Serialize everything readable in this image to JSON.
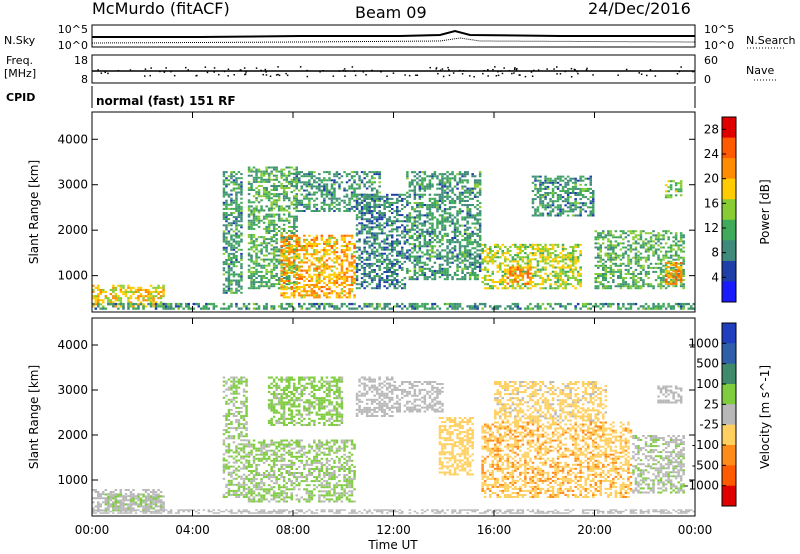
{
  "header": {
    "station": "McMurdo (fitACF)",
    "beam": "Beam 09",
    "date": "24/Dec/2016"
  },
  "panels": {
    "nsky": {
      "left_label": "N.Sky",
      "right_label": "N.Search",
      "left_ticks": [
        "10^5",
        "10^0"
      ],
      "right_ticks": [
        "10^5",
        "10^0"
      ]
    },
    "freq": {
      "left_label_line1": "Freq.",
      "left_label_line2": "[MHz]",
      "right_label": "Nave",
      "left_ticks": [
        "18",
        "8"
      ],
      "right_ticks": [
        "60",
        "0"
      ]
    },
    "cpid": {
      "label": "CPID",
      "text": "normal (fast) 151 RF"
    }
  },
  "colors": {
    "power_scale": [
      "#1a1aff",
      "#1f3fa8",
      "#3f8a7a",
      "#3faa5a",
      "#88cc33",
      "#ffcc00",
      "#ff8c00",
      "#ff5a00",
      "#e00000"
    ],
    "velocity_scale": [
      "#1f3fbf",
      "#2f5fa8",
      "#3f8a6a",
      "#7fcc3f",
      "#b8b8b8",
      "#ffd060",
      "#ff8c1a",
      "#ff5a00",
      "#e00000"
    ]
  },
  "chart_data": [
    {
      "type": "heatmap",
      "name": "Power",
      "xlabel": "",
      "ylabel": "Slant Range [km]",
      "xlim": [
        "00:00",
        "24:00"
      ],
      "ylim": [
        200,
        4600
      ],
      "x_ticks": [
        "00:00",
        "04:00",
        "08:00",
        "12:00",
        "16:00",
        "20:00",
        "00:00"
      ],
      "y_ticks": [
        1000,
        2000,
        3000,
        4000
      ],
      "colorbar": {
        "label": "Power [dB]",
        "ticks": [
          4,
          8,
          12,
          16,
          20,
          24,
          28
        ],
        "range": [
          0,
          30
        ]
      },
      "regions": [
        {
          "t0": 0.0,
          "t1": 2.9,
          "r0": 300,
          "r1": 800,
          "value": 18
        },
        {
          "t0": 0.0,
          "t1": 24.0,
          "r0": 250,
          "r1": 400,
          "value": 10
        },
        {
          "t0": 5.2,
          "t1": 6.0,
          "r0": 600,
          "r1": 3300,
          "value": 10
        },
        {
          "t0": 6.2,
          "t1": 8.2,
          "r0": 700,
          "r1": 3400,
          "value": 12
        },
        {
          "t0": 7.5,
          "t1": 10.5,
          "r0": 500,
          "r1": 1900,
          "value": 20
        },
        {
          "t0": 8.0,
          "t1": 11.5,
          "r0": 2400,
          "r1": 3300,
          "value": 10
        },
        {
          "t0": 10.5,
          "t1": 12.5,
          "r0": 700,
          "r1": 2800,
          "value": 8
        },
        {
          "t0": 12.5,
          "t1": 15.5,
          "r0": 900,
          "r1": 3300,
          "value": 10
        },
        {
          "t0": 15.5,
          "t1": 19.5,
          "r0": 700,
          "r1": 1700,
          "value": 16
        },
        {
          "t0": 16.5,
          "t1": 17.5,
          "r0": 800,
          "r1": 1200,
          "value": 22
        },
        {
          "t0": 17.5,
          "t1": 20.0,
          "r0": 2300,
          "r1": 3200,
          "value": 10
        },
        {
          "t0": 20.0,
          "t1": 23.6,
          "r0": 700,
          "r1": 2000,
          "value": 12
        },
        {
          "t0": 22.8,
          "t1": 23.5,
          "r0": 800,
          "r1": 1300,
          "value": 22
        },
        {
          "t0": 22.8,
          "t1": 23.5,
          "r0": 2700,
          "r1": 3100,
          "value": 14
        }
      ]
    },
    {
      "type": "heatmap",
      "name": "Velocity",
      "xlabel": "Time UT",
      "ylabel": "Slant Range [km]",
      "xlim": [
        "00:00",
        "24:00"
      ],
      "ylim": [
        200,
        4600
      ],
      "x_ticks": [
        "00:00",
        "04:00",
        "08:00",
        "12:00",
        "16:00",
        "20:00",
        "00:00"
      ],
      "y_ticks": [
        1000,
        2000,
        3000,
        4000
      ],
      "colorbar": {
        "label": "Velocity [m s^-1]",
        "ticks": [
          "1000",
          "500",
          "100",
          "25",
          "-25",
          "-100",
          "-500",
          "-1000"
        ],
        "range": [
          -1200,
          1200
        ]
      },
      "regions": [
        {
          "t0": 0.0,
          "t1": 2.9,
          "r0": 300,
          "r1": 800,
          "value": 0
        },
        {
          "t0": 0.5,
          "t1": 2.9,
          "r0": 300,
          "r1": 700,
          "value": 120
        },
        {
          "t0": 0.0,
          "t1": 24.0,
          "r0": 250,
          "r1": 350,
          "value": -30
        },
        {
          "t0": 5.2,
          "t1": 6.2,
          "r0": 600,
          "r1": 3300,
          "value": 150
        },
        {
          "t0": 6.2,
          "t1": 10.5,
          "r0": 500,
          "r1": 1900,
          "value": 150
        },
        {
          "t0": 7.0,
          "t1": 10.0,
          "r0": 2200,
          "r1": 3300,
          "value": 200
        },
        {
          "t0": 10.5,
          "t1": 12.0,
          "r0": 2400,
          "r1": 3300,
          "value": 0
        },
        {
          "t0": 12.0,
          "t1": 14.0,
          "r0": 2500,
          "r1": 3200,
          "value": 0
        },
        {
          "t0": 13.8,
          "t1": 15.2,
          "r0": 1100,
          "r1": 2400,
          "value": -300
        },
        {
          "t0": 15.5,
          "t1": 21.5,
          "r0": 600,
          "r1": 2300,
          "value": -350
        },
        {
          "t0": 16.0,
          "t1": 20.5,
          "r0": 2300,
          "r1": 3200,
          "value": -200
        },
        {
          "t0": 21.5,
          "t1": 23.6,
          "r0": 700,
          "r1": 2000,
          "value": 100
        },
        {
          "t0": 22.5,
          "t1": 23.5,
          "r0": 2700,
          "r1": 3100,
          "value": 0
        }
      ]
    }
  ]
}
